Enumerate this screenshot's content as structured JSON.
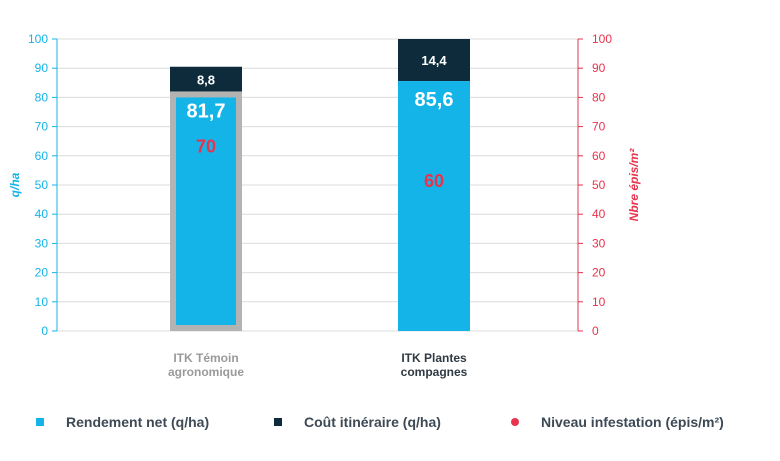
{
  "chart_data": {
    "type": "bar",
    "stacked": true,
    "categories": [
      "ITK Témoin agronomique",
      "ITK Plantes compagnes"
    ],
    "category_labels": [
      [
        "ITK Témoin",
        "agronomique"
      ],
      [
        "ITK Plantes",
        "compagnes"
      ]
    ],
    "series": [
      {
        "name": "Rendement net (q/ha)",
        "values": [
          81.7,
          85.6
        ],
        "value_labels": [
          "81,7",
          "85,6"
        ],
        "axis": "left",
        "color": "#14b4e8"
      },
      {
        "name": "Coût itinéraire (q/ha)",
        "values": [
          8.8,
          14.4
        ],
        "value_labels": [
          "8,8",
          "14,4"
        ],
        "axis": "left",
        "color": "#0e2b3c"
      },
      {
        "name": "Niveau infestation (épis/m²)",
        "values": [
          70,
          60
        ],
        "value_labels": [
          "70",
          "60"
        ],
        "axis": "right",
        "color": "#e8334d"
      }
    ],
    "ylabel": "q/ha",
    "ylim": [
      0,
      100
    ],
    "yticks": [
      "0",
      "10",
      "20",
      "30",
      "40",
      "50",
      "60",
      "70",
      "80",
      "90",
      "100"
    ],
    "y2label": "Nbre épis/m²",
    "y2lim": [
      0,
      100
    ],
    "y2ticks": [
      "0",
      "10",
      "20",
      "30",
      "40",
      "50",
      "60",
      "70",
      "80",
      "90",
      "100"
    ],
    "grid": true,
    "highlighted_category": 0,
    "legend_position": "bottom",
    "colors": {
      "left_axis": "#14b4e8",
      "right_axis": "#e8334d",
      "grid": "#dcdcdc",
      "highlight_outline": "#b3b3b3",
      "category_muted": "#9a9a9a",
      "category_text": "#2f3a43"
    }
  },
  "legend": {
    "items": [
      {
        "label": "Rendement net (q/ha)",
        "color": "#14b4e8",
        "shape": "square"
      },
      {
        "label": "Coût itinéraire (q/ha)",
        "color": "#0e2b3c",
        "shape": "square"
      },
      {
        "label": "Niveau infestation (épis/m²)",
        "color": "#e8334d",
        "shape": "circle"
      }
    ]
  }
}
